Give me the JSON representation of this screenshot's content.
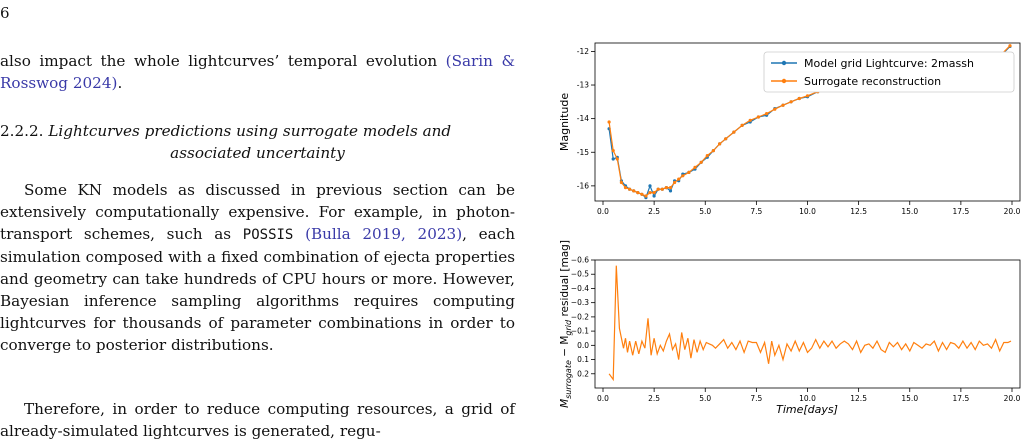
{
  "page_number": "6",
  "text": {
    "p1_a": "also impact the whole lightcurves’ temporal evolution",
    "p1_cite": "(Sarin & Rosswog 2024)",
    "p1_b": ".",
    "heading_num": "2.2.2.",
    "heading_title_1": "Lightcurves predictions using surrogate models and",
    "heading_title_2": "associated uncertainty",
    "p2_a": "Some KN models as discussed in previous section can be extensively computationally expensive. For example, in photon-transport schemes, such as ",
    "p2_code": "POSSIS",
    "p2_cite": "(Bulla 2019, 2023)",
    "p2_b": ", each simulation composed with a fixed combination of ejecta properties and geometry can take hundreds of CPU hours or more. However, Bayesian inference sampling algorithms requires computing lightcurves for thousands of parameter combinations in order to converge to posterior distributions.",
    "p3": "Therefore, in order to reduce computing resources, a grid of already-simulated lightcurves is generated, regu-"
  },
  "colors": {
    "grid": "#1f77b4",
    "surrogate": "#ff7f0e",
    "cite": "#3a3aa8"
  },
  "chart_data": [
    {
      "type": "line",
      "xlabel": "",
      "ylabel": "Magnitude",
      "xlim": [
        0,
        20
      ],
      "ylim": [
        -11.75,
        -16.45
      ],
      "inverted_y": true,
      "xticks": [
        "0.0",
        "2.5",
        "5.0",
        "7.5",
        "10.0",
        "12.5",
        "15.0",
        "17.5",
        "20.0"
      ],
      "yticks": [
        "-16",
        "-15",
        "-14",
        "-13",
        "-12"
      ],
      "legend_position": "top-right",
      "series": [
        {
          "name": "Model grid Lightcurve: 2massh",
          "x": [
            0.3,
            0.5,
            0.7,
            0.9,
            1.1,
            1.3,
            1.5,
            1.7,
            1.9,
            2.1,
            2.3,
            2.5,
            2.7,
            2.9,
            3.1,
            3.3,
            3.5,
            3.7,
            3.9,
            4.2,
            4.5,
            4.8,
            5.1,
            5.4,
            5.7,
            6.0,
            6.4,
            6.8,
            7.2,
            7.6,
            8.0,
            8.4,
            8.8,
            9.2,
            9.6,
            10.0,
            10.5,
            11.0,
            11.5,
            12.0,
            12.5,
            13.0,
            13.5,
            14.0,
            14.5,
            15.0,
            15.5,
            16.0,
            16.5,
            17.0,
            17.5,
            18.0,
            18.5,
            19.0,
            19.5,
            19.9
          ],
          "y": [
            -14.3,
            -15.2,
            -15.15,
            -15.85,
            -16.0,
            -16.1,
            -16.15,
            -16.2,
            -16.25,
            -16.35,
            -16.0,
            -16.3,
            -16.1,
            -16.1,
            -16.05,
            -16.15,
            -15.85,
            -15.85,
            -15.65,
            -15.6,
            -15.5,
            -15.3,
            -15.15,
            -14.95,
            -14.75,
            -14.6,
            -14.4,
            -14.2,
            -14.1,
            -13.95,
            -13.9,
            -13.7,
            -13.6,
            -13.5,
            -13.4,
            -13.35,
            -13.2,
            -13.1,
            -13.0,
            -12.9,
            -12.85,
            -12.75,
            -12.7,
            -12.65,
            -12.6,
            -12.55,
            -12.45,
            -12.45,
            -12.4,
            -12.35,
            -12.3,
            -12.3,
            -12.25,
            -12.2,
            -12.1,
            -11.85
          ]
        },
        {
          "name": "Surrogate reconstruction",
          "x": [
            0.3,
            0.5,
            0.7,
            0.9,
            1.1,
            1.3,
            1.5,
            1.7,
            1.9,
            2.1,
            2.3,
            2.5,
            2.7,
            2.9,
            3.1,
            3.3,
            3.5,
            3.7,
            3.9,
            4.2,
            4.5,
            4.8,
            5.1,
            5.4,
            5.7,
            6.0,
            6.4,
            6.8,
            7.2,
            7.6,
            8.0,
            8.4,
            8.8,
            9.2,
            9.6,
            10.0,
            10.5,
            11.0,
            11.5,
            12.0,
            12.5,
            13.0,
            13.5,
            14.0,
            14.5,
            15.0,
            15.5,
            16.0,
            16.5,
            17.0,
            17.5,
            18.0,
            18.5,
            19.0,
            19.5,
            19.9
          ],
          "y": [
            -14.1,
            -14.95,
            -15.2,
            -15.9,
            -16.05,
            -16.1,
            -16.15,
            -16.2,
            -16.25,
            -16.3,
            -16.2,
            -16.2,
            -16.1,
            -16.1,
            -16.05,
            -16.05,
            -15.9,
            -15.8,
            -15.7,
            -15.6,
            -15.45,
            -15.3,
            -15.1,
            -14.95,
            -14.75,
            -14.6,
            -14.4,
            -14.2,
            -14.05,
            -13.95,
            -13.85,
            -13.72,
            -13.6,
            -13.5,
            -13.4,
            -13.32,
            -13.2,
            -13.1,
            -13.0,
            -12.92,
            -12.85,
            -12.77,
            -12.7,
            -12.64,
            -12.58,
            -12.52,
            -12.47,
            -12.43,
            -12.39,
            -12.35,
            -12.31,
            -12.28,
            -12.24,
            -12.18,
            -12.08,
            -11.83
          ]
        }
      ]
    },
    {
      "type": "line",
      "xlabel": "Time[days]",
      "ylabel": "M_surrogate − M_grid residual [mag]",
      "ylabel_main": "M",
      "ylabel_sub1": "surrogate",
      "ylabel_mid": " − M",
      "ylabel_sub2": "grid",
      "ylabel_tail": " residual [mag]",
      "xlim": [
        0,
        20
      ],
      "ylim": [
        -0.6,
        0.3
      ],
      "xticks": [
        "0.0",
        "2.5",
        "5.0",
        "7.5",
        "10.0",
        "12.5",
        "15.0",
        "17.5",
        "20.0"
      ],
      "yticks": [
        "0.2",
        "0.1",
        "0.0",
        "−0.1",
        "−0.2",
        "−0.3",
        "−0.4",
        "−0.5",
        "−0.6"
      ],
      "series": [
        {
          "name": "",
          "x": [
            0.3,
            0.5,
            0.65,
            0.8,
            1.0,
            1.1,
            1.2,
            1.3,
            1.45,
            1.6,
            1.75,
            1.9,
            2.05,
            2.2,
            2.35,
            2.5,
            2.65,
            2.8,
            2.95,
            3.1,
            3.25,
            3.4,
            3.55,
            3.7,
            3.85,
            4.0,
            4.15,
            4.3,
            4.45,
            4.6,
            4.75,
            4.9,
            5.05,
            5.2,
            5.35,
            5.5,
            5.7,
            5.9,
            6.1,
            6.3,
            6.5,
            6.7,
            6.9,
            7.1,
            7.3,
            7.5,
            7.7,
            7.9,
            8.1,
            8.25,
            8.4,
            8.6,
            8.8,
            9.0,
            9.2,
            9.4,
            9.6,
            9.8,
            10.0,
            10.2,
            10.4,
            10.6,
            10.8,
            11.0,
            11.2,
            11.4,
            11.6,
            11.8,
            12.0,
            12.2,
            12.4,
            12.6,
            12.8,
            13.0,
            13.2,
            13.4,
            13.6,
            13.8,
            14.0,
            14.2,
            14.4,
            14.6,
            14.8,
            15.0,
            15.2,
            15.4,
            15.6,
            15.8,
            16.0,
            16.2,
            16.4,
            16.6,
            16.8,
            17.0,
            17.2,
            17.4,
            17.6,
            17.8,
            18.0,
            18.2,
            18.4,
            18.6,
            18.8,
            19.0,
            19.2,
            19.4,
            19.6,
            19.8,
            19.95
          ],
          "y": [
            0.2,
            0.24,
            -0.56,
            -0.12,
            0.02,
            -0.05,
            0.05,
            -0.03,
            0.07,
            -0.03,
            0.06,
            -0.03,
            0.02,
            -0.19,
            0.07,
            -0.05,
            0.06,
            0.0,
            0.04,
            -0.03,
            -0.08,
            0.03,
            -0.01,
            0.1,
            -0.09,
            0.03,
            -0.05,
            0.09,
            -0.04,
            0.05,
            -0.03,
            0.03,
            -0.02,
            -0.01,
            0.0,
            0.02,
            -0.01,
            -0.04,
            0.02,
            -0.02,
            0.03,
            -0.03,
            0.05,
            -0.03,
            -0.02,
            -0.02,
            0.05,
            -0.02,
            0.13,
            -0.03,
            0.07,
            0.0,
            0.1,
            -0.01,
            0.04,
            -0.03,
            0.04,
            -0.02,
            0.05,
            0.02,
            -0.04,
            0.02,
            -0.03,
            0.01,
            -0.03,
            0.02,
            -0.01,
            -0.03,
            -0.01,
            0.03,
            -0.03,
            0.05,
            0.0,
            -0.01,
            0.02,
            -0.03,
            0.03,
            0.05,
            -0.02,
            0.01,
            -0.02,
            0.03,
            -0.01,
            0.04,
            -0.02,
            0.0,
            0.02,
            -0.01,
            0.0,
            -0.03,
            0.04,
            -0.02,
            0.03,
            -0.02,
            -0.01,
            0.02,
            -0.03,
            0.02,
            -0.02,
            0.03,
            -0.03,
            0.0,
            -0.01,
            0.02,
            -0.04,
            0.04,
            -0.02,
            -0.02,
            -0.03
          ]
        }
      ]
    }
  ]
}
